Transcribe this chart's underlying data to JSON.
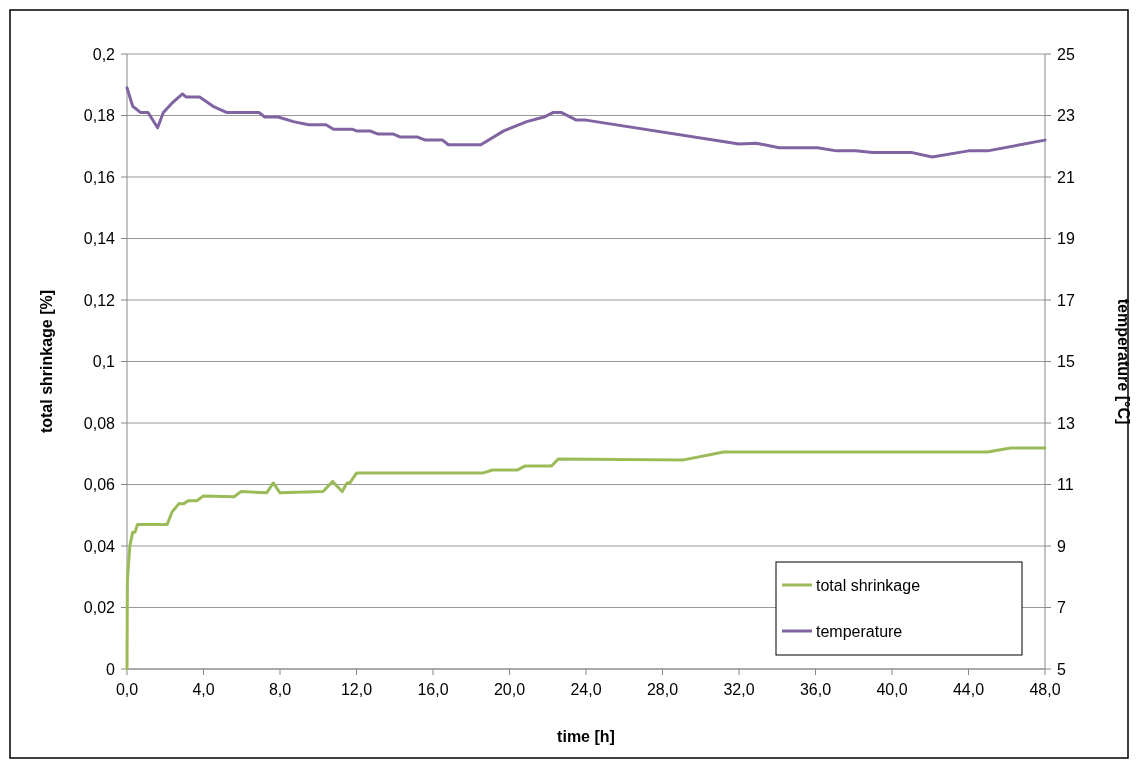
{
  "chart_data": {
    "type": "line",
    "xlabel": "time [h]",
    "ylabel": "total shrinkage [%]",
    "y2label": "temperature [°C]",
    "xlim": [
      0,
      48
    ],
    "xticks": [
      {
        "value": 0,
        "label": "0,0"
      },
      {
        "value": 4,
        "label": "4,0"
      },
      {
        "value": 8,
        "label": "8,0"
      },
      {
        "value": 12,
        "label": "12,0"
      },
      {
        "value": 16,
        "label": "16,0"
      },
      {
        "value": 20,
        "label": "20,0"
      },
      {
        "value": 24,
        "label": "24,0"
      },
      {
        "value": 28,
        "label": "28,0"
      },
      {
        "value": 32,
        "label": "32,0"
      },
      {
        "value": 36,
        "label": "36,0"
      },
      {
        "value": 40,
        "label": "40,0"
      },
      {
        "value": 44,
        "label": "44,0"
      },
      {
        "value": 48,
        "label": "48,0"
      }
    ],
    "ylim": [
      0,
      0.2
    ],
    "yticks": [
      0,
      {
        "value": 0.02,
        "label": "0,02"
      },
      {
        "value": 0.04,
        "label": "0,04"
      },
      {
        "value": 0.06,
        "label": "0,06"
      },
      {
        "value": 0.08,
        "label": "0,08"
      },
      {
        "value": 0.1,
        "label": "0,1"
      },
      {
        "value": 0.12,
        "label": "0,12"
      },
      {
        "value": 0.14,
        "label": "0,14"
      },
      {
        "value": 0.16,
        "label": "0,16"
      },
      {
        "value": 0.18,
        "label": "0,18"
      },
      {
        "value": 0.2,
        "label": "0,2"
      }
    ],
    "y2lim": [
      5,
      25
    ],
    "y2ticks": [
      5,
      7,
      9,
      11,
      13,
      15,
      17,
      19,
      21,
      23,
      25
    ],
    "grid": "y",
    "legend": "bottom right",
    "marker": "none",
    "line_style": "solid",
    "series": [
      {
        "name": "total shrinkage",
        "color": "#9bbb59",
        "x": [
          0,
          0.02,
          0.15,
          0.3,
          0.42,
          0.55,
          1.9,
          2.1,
          2.35,
          2.7,
          2.95,
          3.2,
          3.65,
          4.0,
          5.6,
          5.95,
          7.3,
          7.65,
          8.0,
          10.25,
          10.75,
          11.25,
          11.5,
          11.65,
          12.0,
          18.6,
          19.1,
          20.4,
          20.8,
          22.2,
          22.55,
          29.1,
          31.2,
          45.0,
          46.2,
          48
        ],
        "values": [
          0,
          0.029,
          0.04,
          0.0445,
          0.0445,
          0.047,
          0.047,
          0.047,
          0.051,
          0.0537,
          0.0537,
          0.0547,
          0.0547,
          0.0563,
          0.056,
          0.0577,
          0.0573,
          0.0605,
          0.0573,
          0.0577,
          0.061,
          0.0577,
          0.0605,
          0.0605,
          0.0637,
          0.0637,
          0.0647,
          0.0647,
          0.066,
          0.066,
          0.0683,
          0.068,
          0.0706,
          0.0706,
          0.0719,
          0.0719
        ]
      },
      {
        "name": "temperature",
        "color": "#8064a2",
        "axis": "y2",
        "x": [
          0,
          0.3,
          0.7,
          1.1,
          1.6,
          1.9,
          2.35,
          2.9,
          3.1,
          3.8,
          4.5,
          5.2,
          5.9,
          6.9,
          7.2,
          7.9,
          8.7,
          9.5,
          10.4,
          10.8,
          11.8,
          12.0,
          12.7,
          13.1,
          13.9,
          14.3,
          15.2,
          15.6,
          16.5,
          16.8,
          18.5,
          19.7,
          20.9,
          21.8,
          22.3,
          22.7,
          23.5,
          24.0,
          32.0,
          32.9,
          34.1,
          36.1,
          37.1,
          38.1,
          39.0,
          41.0,
          42.1,
          44.0,
          45.0,
          48
        ],
        "values": [
          23.9,
          23.3,
          23.1,
          23.1,
          22.6,
          23.1,
          23.4,
          23.7,
          23.6,
          23.6,
          23.3,
          23.1,
          23.1,
          23.1,
          22.95,
          22.95,
          22.8,
          22.7,
          22.7,
          22.55,
          22.55,
          22.5,
          22.5,
          22.4,
          22.4,
          22.3,
          22.3,
          22.2,
          22.2,
          22.05,
          22.05,
          22.5,
          22.8,
          22.95,
          23.1,
          23.1,
          22.85,
          22.85,
          22.07,
          22.1,
          21.95,
          21.95,
          21.85,
          21.85,
          21.8,
          21.8,
          21.65,
          21.85,
          21.85,
          22.2
        ]
      }
    ]
  }
}
